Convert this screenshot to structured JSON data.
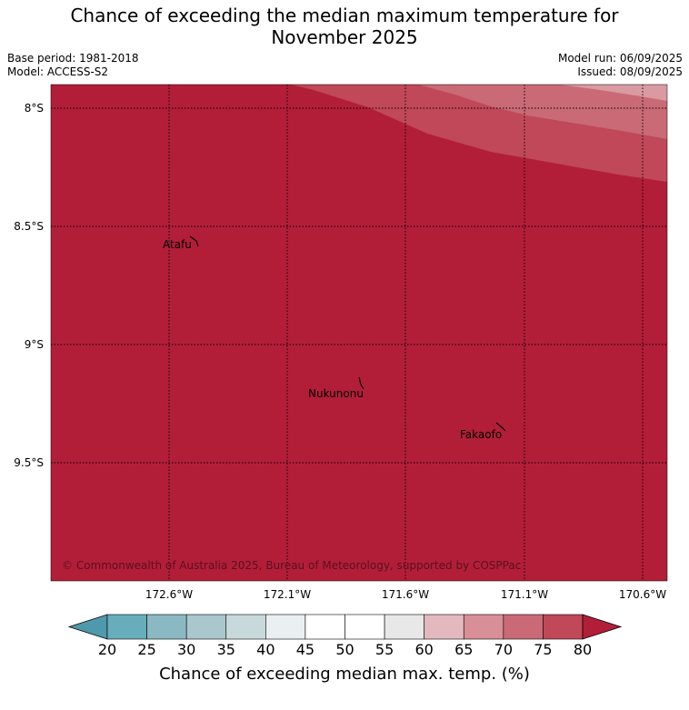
{
  "title": {
    "line1": "Chance of exceeding the median maximum temperature for",
    "line2": "November 2025"
  },
  "meta": {
    "base_period": "Base period: 1981-2018",
    "model": "Model: ACCESS-S2",
    "model_run": "Model run: 06/09/2025",
    "issued": "Issued: 08/09/2025"
  },
  "map": {
    "lat_labels": [
      "8°S",
      "8.5°S",
      "9°S",
      "9.5°S"
    ],
    "lon_labels": [
      "172.6°W",
      "172.1°W",
      "171.6°W",
      "171.1°W",
      "170.6°W"
    ],
    "places": [
      {
        "name": "Atafu"
      },
      {
        "name": "Nukunonu"
      },
      {
        "name": "Fakaofo"
      }
    ],
    "copyright": "© Commonwealth of Australia 2025, Bureau of Meteorology, supported by COSPPac",
    "colors": {
      "gt80": "#b21e38",
      "c75_80": "#c04858",
      "c70_75": "#c96a76",
      "c65_70": "#d99aa2"
    }
  },
  "colorbar": {
    "ticks": [
      "20",
      "25",
      "30",
      "35",
      "40",
      "45",
      "50",
      "55",
      "60",
      "65",
      "70",
      "75",
      "80"
    ],
    "colors": [
      "#4e9aac",
      "#68adbb",
      "#8ab9c4",
      "#a9c7cc",
      "#c8d9dc",
      "#eaf0f1",
      "#ffffff",
      "#ffffff",
      "#e8e8e8",
      "#e3b9bf",
      "#d98f97",
      "#c96a76",
      "#c04858",
      "#b21e38"
    ],
    "label": "Chance of exceeding median max. temp. (%)"
  }
}
